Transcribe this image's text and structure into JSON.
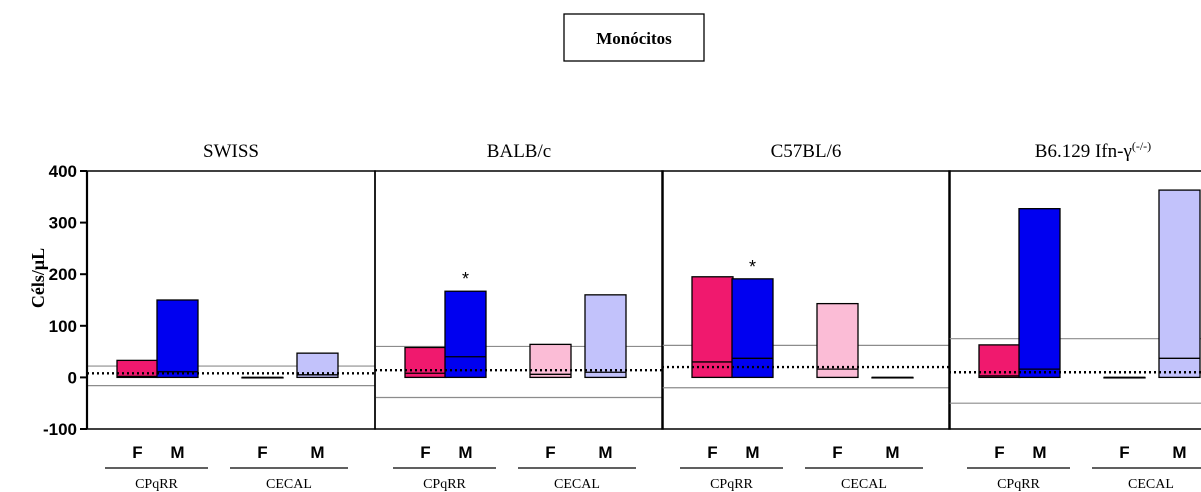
{
  "title": "Monócitos",
  "ylabel": "Céls/μL",
  "colors": {
    "CPqRR_F": "#f0196e",
    "CPqRR_M": "#0000f0",
    "CECAL_F": "#fbbcd6",
    "CECAL_M": "#c2c2fb"
  },
  "chart_data": [
    {
      "type": "bar",
      "title": "SWISS",
      "categories": [
        "F",
        "M",
        "F",
        "M"
      ],
      "groups": [
        "CPqRR",
        "CECAL"
      ],
      "ylim": [
        -100,
        400
      ],
      "yticks": [
        "400",
        "300",
        "200",
        "100",
        "0",
        "-100"
      ],
      "bars": [
        {
          "group": "CPqRR",
          "sex": "F",
          "max": 33,
          "median": 2,
          "min": 0
        },
        {
          "group": "CPqRR",
          "sex": "M",
          "max": 150,
          "median": 11,
          "min": 0
        },
        {
          "group": "CECAL",
          "sex": "F",
          "max": 0,
          "median": 0,
          "min": 0
        },
        {
          "group": "CECAL",
          "sex": "M",
          "max": 47,
          "median": 5,
          "min": 0
        }
      ],
      "reference": {
        "upper": 22,
        "median": 8,
        "lower": -16
      },
      "asterisks": []
    },
    {
      "type": "bar",
      "title": "BALB/c",
      "categories": [
        "F",
        "M",
        "F",
        "M"
      ],
      "groups": [
        "CPqRR",
        "CECAL"
      ],
      "ylim": [
        -100,
        400
      ],
      "bars": [
        {
          "group": "CPqRR",
          "sex": "F",
          "max": 58,
          "median": 8,
          "min": 0
        },
        {
          "group": "CPqRR",
          "sex": "M",
          "max": 167,
          "median": 40,
          "min": 0
        },
        {
          "group": "CECAL",
          "sex": "F",
          "max": 64,
          "median": 6,
          "min": 0
        },
        {
          "group": "CECAL",
          "sex": "M",
          "max": 160,
          "median": 10,
          "min": 0
        }
      ],
      "reference": {
        "upper": 60,
        "median": 14,
        "lower": -39
      },
      "asterisks": [
        "*"
      ],
      "asterisk_bar": 1
    },
    {
      "type": "bar",
      "title": "C57BL/6",
      "categories": [
        "F",
        "M",
        "F",
        "M"
      ],
      "groups": [
        "CPqRR",
        "CECAL"
      ],
      "ylim": [
        -100,
        400
      ],
      "bars": [
        {
          "group": "CPqRR",
          "sex": "F",
          "max": 195,
          "median": 30,
          "min": 0
        },
        {
          "group": "CPqRR",
          "sex": "M",
          "max": 191,
          "median": 37,
          "min": 0
        },
        {
          "group": "CECAL",
          "sex": "F",
          "max": 143,
          "median": 16,
          "min": 0
        },
        {
          "group": "CECAL",
          "sex": "M",
          "max": 0,
          "median": 0,
          "min": 0
        }
      ],
      "reference": {
        "upper": 62,
        "median": 20,
        "lower": -20
      },
      "asterisks": [
        "*"
      ],
      "asterisk_bar": 1
    },
    {
      "type": "bar",
      "title": "B6.129 Ifn-γ",
      "title_sup": "(-/-)",
      "categories": [
        "F",
        "M",
        "F",
        "M"
      ],
      "groups": [
        "CPqRR",
        "CECAL"
      ],
      "ylim": [
        -100,
        400
      ],
      "bars": [
        {
          "group": "CPqRR",
          "sex": "F",
          "max": 63,
          "median": 3,
          "min": 0
        },
        {
          "group": "CPqRR",
          "sex": "M",
          "max": 327,
          "median": 16,
          "min": 0
        },
        {
          "group": "CECAL",
          "sex": "F",
          "max": 0,
          "median": 0,
          "min": 0
        },
        {
          "group": "CECAL",
          "sex": "M",
          "max": 363,
          "median": 37,
          "min": 0
        }
      ],
      "reference": {
        "upper": 75,
        "median": 10,
        "lower": -50
      },
      "asterisks": []
    }
  ]
}
